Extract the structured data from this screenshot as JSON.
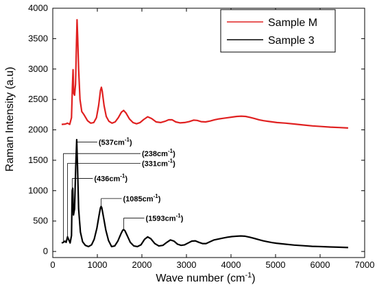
{
  "chart_data": {
    "type": "line",
    "xlabel": "Wave number (cm",
    "xlabel_sup": "-1",
    "xlabel_tail": ")",
    "ylabel": "Raman Intensity (a.u)",
    "xlim": [
      0,
      7000
    ],
    "ylim": [
      -100,
      4000
    ],
    "xticks": [
      0,
      1000,
      2000,
      3000,
      4000,
      5000,
      6000,
      7000
    ],
    "yticks": [
      0,
      500,
      1000,
      1500,
      2000,
      2500,
      3000,
      3500,
      4000
    ],
    "grid": false,
    "legend_position": "top-right",
    "series": [
      {
        "name": "Sample M",
        "color": "#e02020",
        "points": [
          [
            200,
            2090
          ],
          [
            280,
            2095
          ],
          [
            330,
            2110
          ],
          [
            380,
            2090
          ],
          [
            420,
            2200
          ],
          [
            440,
            2700
          ],
          [
            455,
            2990
          ],
          [
            470,
            2600
          ],
          [
            490,
            2570
          ],
          [
            510,
            2750
          ],
          [
            530,
            3400
          ],
          [
            545,
            3810
          ],
          [
            560,
            3500
          ],
          [
            580,
            3000
          ],
          [
            610,
            2500
          ],
          [
            650,
            2300
          ],
          [
            700,
            2250
          ],
          [
            780,
            2150
          ],
          [
            850,
            2110
          ],
          [
            920,
            2120
          ],
          [
            980,
            2200
          ],
          [
            1030,
            2400
          ],
          [
            1070,
            2650
          ],
          [
            1090,
            2700
          ],
          [
            1110,
            2640
          ],
          [
            1150,
            2400
          ],
          [
            1200,
            2220
          ],
          [
            1260,
            2140
          ],
          [
            1330,
            2110
          ],
          [
            1400,
            2130
          ],
          [
            1470,
            2200
          ],
          [
            1540,
            2290
          ],
          [
            1590,
            2320
          ],
          [
            1640,
            2280
          ],
          [
            1720,
            2180
          ],
          [
            1800,
            2120
          ],
          [
            1880,
            2100
          ],
          [
            1960,
            2120
          ],
          [
            2040,
            2170
          ],
          [
            2130,
            2215
          ],
          [
            2220,
            2185
          ],
          [
            2320,
            2130
          ],
          [
            2420,
            2120
          ],
          [
            2520,
            2140
          ],
          [
            2600,
            2165
          ],
          [
            2680,
            2165
          ],
          [
            2760,
            2130
          ],
          [
            2860,
            2115
          ],
          [
            2960,
            2120
          ],
          [
            3060,
            2135
          ],
          [
            3160,
            2160
          ],
          [
            3240,
            2155
          ],
          [
            3330,
            2135
          ],
          [
            3430,
            2130
          ],
          [
            3530,
            2145
          ],
          [
            3630,
            2165
          ],
          [
            3730,
            2180
          ],
          [
            3830,
            2190
          ],
          [
            3930,
            2200
          ],
          [
            4030,
            2210
          ],
          [
            4130,
            2220
          ],
          [
            4230,
            2225
          ],
          [
            4330,
            2220
          ],
          [
            4430,
            2205
          ],
          [
            4530,
            2185
          ],
          [
            4630,
            2165
          ],
          [
            4730,
            2150
          ],
          [
            4830,
            2140
          ],
          [
            4930,
            2130
          ],
          [
            5030,
            2120
          ],
          [
            5230,
            2110
          ],
          [
            5430,
            2095
          ],
          [
            5630,
            2080
          ],
          [
            5830,
            2065
          ],
          [
            6030,
            2055
          ],
          [
            6230,
            2045
          ],
          [
            6430,
            2038
          ],
          [
            6630,
            2030
          ]
        ]
      },
      {
        "name": "Sample 3",
        "color": "#000000",
        "points": [
          [
            200,
            140
          ],
          [
            238,
            150
          ],
          [
            270,
            170
          ],
          [
            300,
            150
          ],
          [
            331,
            240
          ],
          [
            360,
            190
          ],
          [
            390,
            140
          ],
          [
            420,
            260
          ],
          [
            436,
            1000
          ],
          [
            448,
            1040
          ],
          [
            465,
            600
          ],
          [
            490,
            700
          ],
          [
            515,
            1400
          ],
          [
            537,
            1840
          ],
          [
            555,
            1400
          ],
          [
            580,
            700
          ],
          [
            620,
            320
          ],
          [
            670,
            160
          ],
          [
            730,
            100
          ],
          [
            800,
            80
          ],
          [
            870,
            110
          ],
          [
            930,
            200
          ],
          [
            990,
            380
          ],
          [
            1040,
            600
          ],
          [
            1070,
            720
          ],
          [
            1085,
            740
          ],
          [
            1100,
            720
          ],
          [
            1140,
            560
          ],
          [
            1190,
            350
          ],
          [
            1250,
            180
          ],
          [
            1320,
            80
          ],
          [
            1390,
            90
          ],
          [
            1460,
            170
          ],
          [
            1530,
            290
          ],
          [
            1570,
            350
          ],
          [
            1593,
            360
          ],
          [
            1620,
            340
          ],
          [
            1670,
            260
          ],
          [
            1740,
            150
          ],
          [
            1820,
            90
          ],
          [
            1900,
            80
          ],
          [
            1980,
            110
          ],
          [
            2060,
            200
          ],
          [
            2130,
            240
          ],
          [
            2200,
            210
          ],
          [
            2290,
            130
          ],
          [
            2380,
            90
          ],
          [
            2470,
            100
          ],
          [
            2560,
            150
          ],
          [
            2640,
            190
          ],
          [
            2720,
            170
          ],
          [
            2800,
            120
          ],
          [
            2880,
            100
          ],
          [
            2960,
            110
          ],
          [
            3040,
            140
          ],
          [
            3120,
            170
          ],
          [
            3200,
            175
          ],
          [
            3280,
            150
          ],
          [
            3360,
            130
          ],
          [
            3440,
            130
          ],
          [
            3530,
            160
          ],
          [
            3620,
            190
          ],
          [
            3720,
            205
          ],
          [
            3820,
            220
          ],
          [
            3920,
            235
          ],
          [
            4020,
            245
          ],
          [
            4120,
            250
          ],
          [
            4220,
            255
          ],
          [
            4320,
            250
          ],
          [
            4420,
            235
          ],
          [
            4520,
            215
          ],
          [
            4620,
            195
          ],
          [
            4720,
            175
          ],
          [
            4820,
            160
          ],
          [
            4920,
            145
          ],
          [
            5020,
            135
          ],
          [
            5220,
            120
          ],
          [
            5420,
            105
          ],
          [
            5620,
            95
          ],
          [
            5820,
            85
          ],
          [
            6020,
            80
          ],
          [
            6220,
            75
          ],
          [
            6420,
            70
          ],
          [
            6630,
            65
          ]
        ]
      }
    ],
    "annotations": [
      {
        "label": "(537",
        "sup": "-1",
        "peak_x": 537,
        "peak_y": 1840,
        "text_y": 1800
      },
      {
        "label": "(238",
        "sup": "-1",
        "peak_x": 238,
        "peak_y": 150,
        "text_y": 1610
      },
      {
        "label": "(331",
        "sup": "-1",
        "peak_x": 331,
        "peak_y": 240,
        "text_y": 1450
      },
      {
        "label": "(436",
        "sup": "-1",
        "peak_x": 436,
        "peak_y": 1000,
        "text_y": 1200
      },
      {
        "label": "(1085",
        "sup": "-1",
        "peak_x": 1085,
        "peak_y": 740,
        "text_y": 870
      },
      {
        "label": "(1593",
        "sup": "-1",
        "peak_x": 1593,
        "peak_y": 360,
        "text_y": 550
      }
    ],
    "annotation_unit": "cm"
  }
}
